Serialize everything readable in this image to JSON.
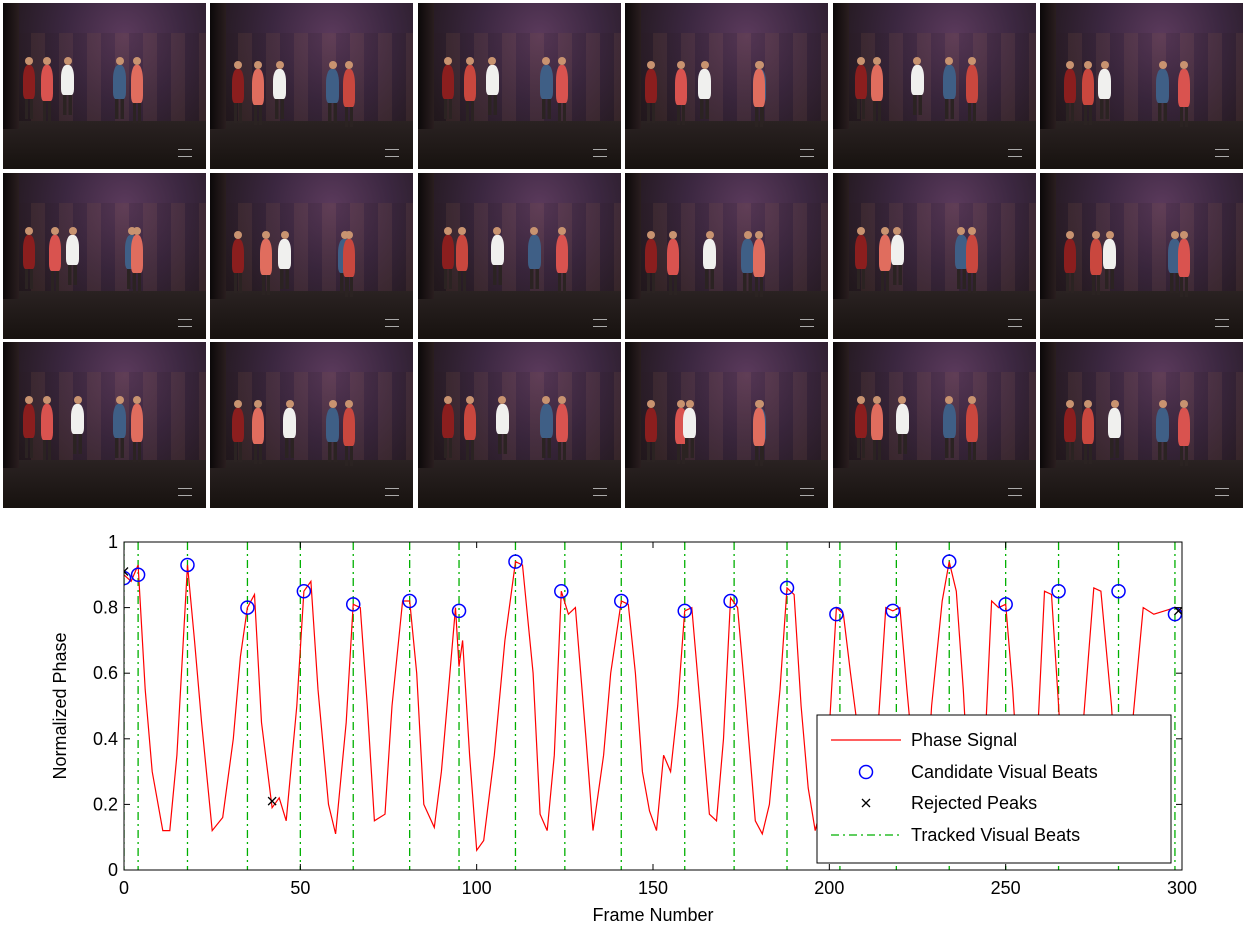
{
  "chart_data": {
    "type": "line",
    "xlabel": "Frame Number",
    "ylabel": "Normalized Phase",
    "xlim": [
      0,
      300
    ],
    "ylim": [
      0,
      1
    ],
    "xticks": [
      0,
      50,
      100,
      150,
      200,
      250,
      300
    ],
    "yticks": [
      0,
      0.2,
      0.4,
      0.6,
      0.8,
      1
    ],
    "grid": false,
    "legend_position": "bottom-right",
    "series": [
      {
        "name": "Phase Signal",
        "style": "line",
        "color": "#ff0000",
        "x": [
          0,
          2,
          4,
          6,
          8,
          11,
          13,
          15,
          18,
          20,
          22,
          25,
          28,
          31,
          33,
          35,
          37,
          39,
          42,
          44,
          46,
          49,
          51,
          53,
          55,
          58,
          60,
          63,
          65,
          67,
          69,
          71,
          74,
          76,
          79,
          81,
          83,
          85,
          88,
          90,
          92,
          94,
          95,
          96,
          98,
          100,
          102,
          105,
          108,
          111,
          113,
          116,
          118,
          120,
          122,
          124,
          126,
          128,
          131,
          133,
          136,
          138,
          141,
          143,
          145,
          147,
          149,
          151,
          153,
          155,
          157,
          159,
          161,
          163,
          166,
          168,
          170,
          172,
          174,
          176,
          179,
          181,
          183,
          186,
          188,
          190,
          192,
          194,
          196,
          199,
          202,
          204,
          206,
          209,
          211,
          213,
          216,
          218,
          220,
          222,
          225,
          227,
          229,
          232,
          234,
          236,
          238,
          240,
          242,
          244,
          246,
          248,
          250,
          252,
          254,
          257,
          259,
          261,
          263,
          265,
          267,
          269,
          272,
          275,
          277,
          280,
          282,
          284,
          286,
          289,
          292,
          295,
          298,
          300
        ],
        "y": [
          0.9,
          0.88,
          0.93,
          0.55,
          0.3,
          0.12,
          0.12,
          0.35,
          0.93,
          0.7,
          0.45,
          0.12,
          0.16,
          0.4,
          0.65,
          0.8,
          0.84,
          0.45,
          0.19,
          0.22,
          0.15,
          0.5,
          0.85,
          0.88,
          0.55,
          0.2,
          0.11,
          0.45,
          0.81,
          0.8,
          0.5,
          0.15,
          0.17,
          0.5,
          0.82,
          0.82,
          0.6,
          0.2,
          0.13,
          0.3,
          0.55,
          0.8,
          0.62,
          0.7,
          0.35,
          0.06,
          0.09,
          0.35,
          0.7,
          0.94,
          0.93,
          0.6,
          0.17,
          0.12,
          0.35,
          0.85,
          0.78,
          0.8,
          0.4,
          0.12,
          0.35,
          0.6,
          0.82,
          0.81,
          0.6,
          0.3,
          0.18,
          0.12,
          0.35,
          0.3,
          0.5,
          0.79,
          0.8,
          0.55,
          0.17,
          0.15,
          0.4,
          0.83,
          0.8,
          0.55,
          0.15,
          0.11,
          0.2,
          0.55,
          0.86,
          0.84,
          0.5,
          0.25,
          0.12,
          0.25,
          0.8,
          0.78,
          0.6,
          0.35,
          0.12,
          0.3,
          0.8,
          0.79,
          0.8,
          0.55,
          0.2,
          0.15,
          0.5,
          0.82,
          0.94,
          0.85,
          0.55,
          0.15,
          0.12,
          0.35,
          0.82,
          0.8,
          0.81,
          0.55,
          0.2,
          0.12,
          0.4,
          0.85,
          0.84,
          0.5,
          0.15,
          0.13,
          0.45,
          0.86,
          0.85,
          0.5,
          0.15,
          0.13,
          0.45,
          0.8,
          0.78,
          0.79,
          0.8,
          0.79
        ]
      },
      {
        "name": "Candidate Visual Beats",
        "style": "marker-circle",
        "color": "#0000ff",
        "x": [
          0,
          4,
          18,
          35,
          51,
          65,
          81,
          95,
          111,
          124,
          141,
          159,
          172,
          188,
          202,
          218,
          234,
          250,
          265,
          282,
          298
        ],
        "y": [
          0.89,
          0.9,
          0.93,
          0.8,
          0.85,
          0.81,
          0.82,
          0.79,
          0.94,
          0.85,
          0.82,
          0.79,
          0.82,
          0.86,
          0.78,
          0.79,
          0.94,
          0.81,
          0.85,
          0.85,
          0.78
        ]
      },
      {
        "name": "Rejected Peaks",
        "style": "marker-x",
        "color": "#000000",
        "x": [
          0,
          42,
          299
        ],
        "y": [
          0.91,
          0.21,
          0.79
        ]
      },
      {
        "name": "Tracked Visual Beats",
        "style": "vline-dashdot",
        "color": "#00b000",
        "x": [
          0,
          4,
          18,
          35,
          50,
          65,
          81,
          95,
          111,
          125,
          141,
          159,
          173,
          188,
          203,
          219,
          234,
          250,
          265,
          282,
          298
        ]
      }
    ]
  },
  "thumbnails": {
    "rows": 3,
    "cols": 6,
    "description_icon": "dance-frame-thumbnail"
  }
}
